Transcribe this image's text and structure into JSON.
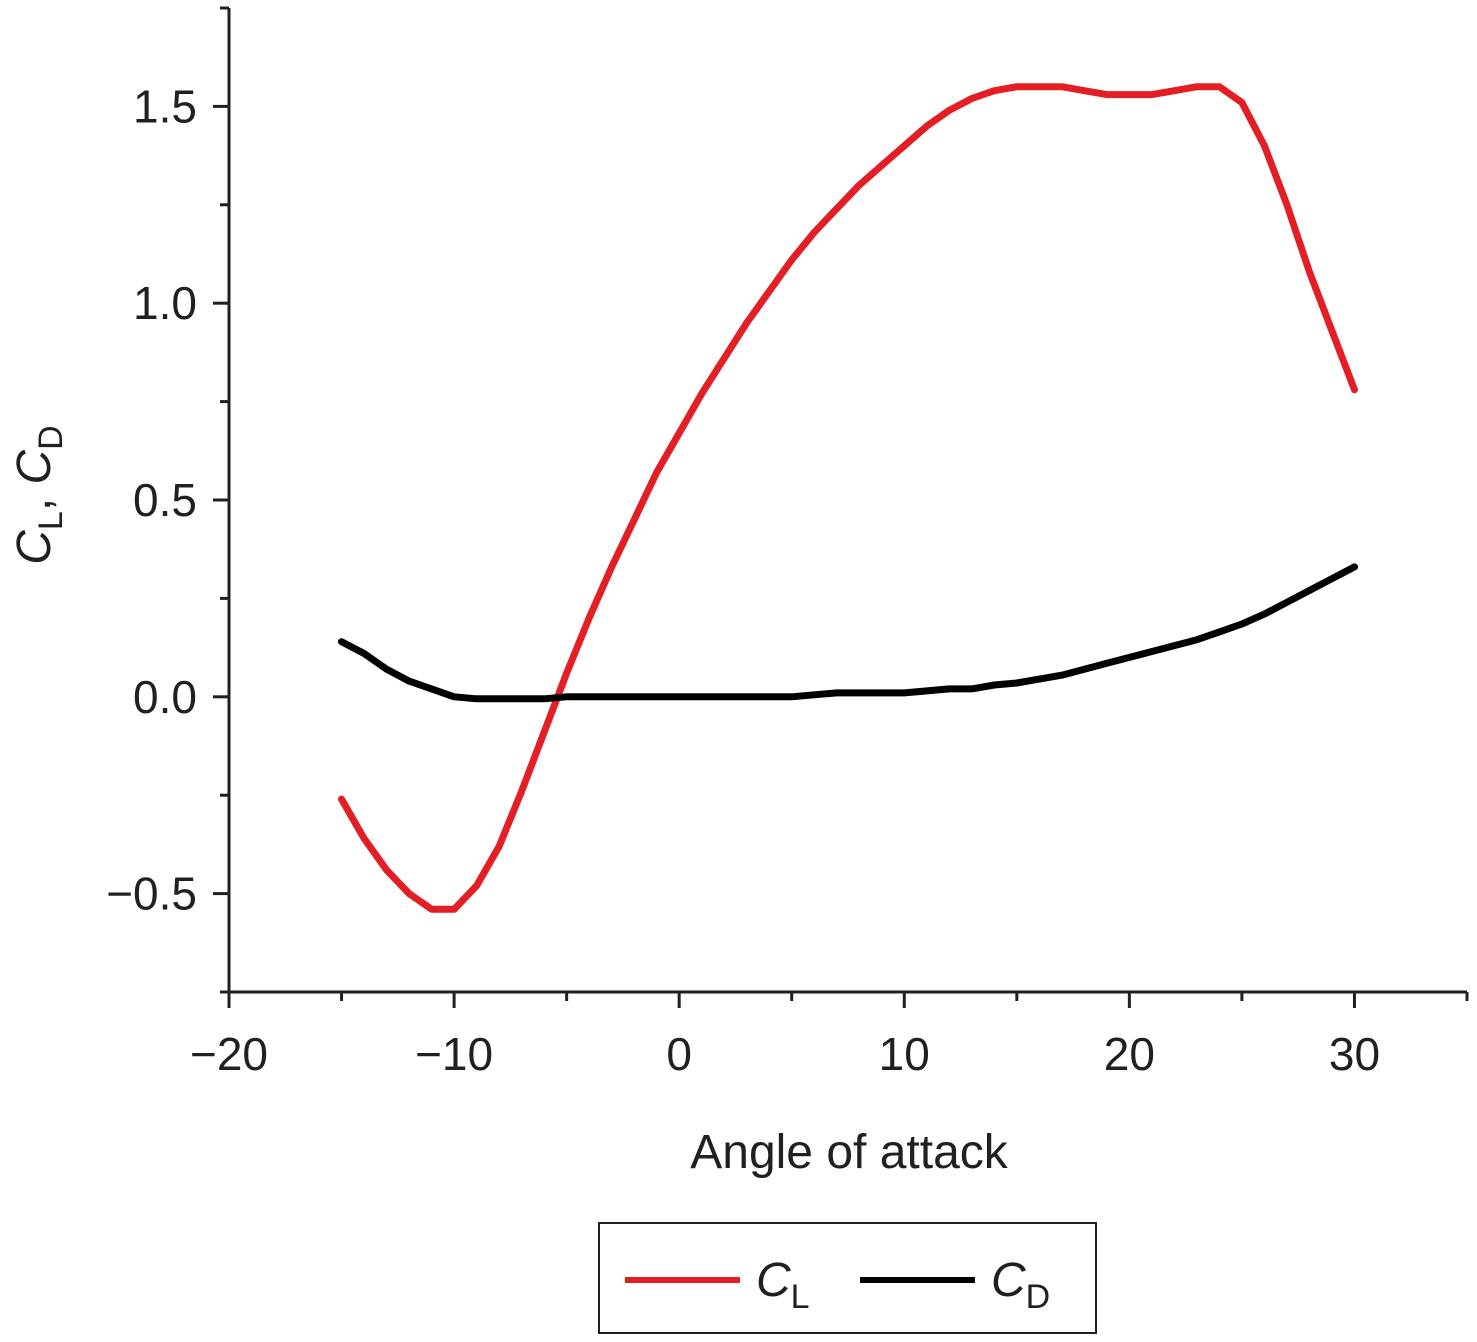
{
  "chart_data": {
    "type": "line",
    "title": "",
    "xlabel": "Angle of attack",
    "ylabel": {
      "symbol1": "C",
      "sub1": "L",
      "sep": ", ",
      "symbol2": "C",
      "sub2": "D"
    },
    "xlim": [
      -20,
      35
    ],
    "ylim": [
      -0.75,
      1.75
    ],
    "xticks": [
      -20,
      -10,
      0,
      10,
      20,
      30
    ],
    "xtick_labels": [
      "−20",
      "−10",
      "0",
      "10",
      "20",
      "30"
    ],
    "yticks": [
      -0.5,
      0.0,
      0.5,
      1.0,
      1.5
    ],
    "ytick_labels": [
      "−0.5",
      "0.0",
      "0.5",
      "1.0",
      "1.5"
    ],
    "grid": false,
    "legend": "bottom-center",
    "series": [
      {
        "symbol": "C",
        "subscript": "L",
        "color": "#e31e24",
        "x": [
          -15,
          -14,
          -13,
          -12,
          -11,
          -10,
          -9,
          -8,
          -7,
          -6,
          -5,
          -4,
          -3,
          -2,
          -1,
          0,
          1,
          2,
          3,
          4,
          5,
          6,
          7,
          8,
          9,
          10,
          11,
          12,
          13,
          14,
          15,
          16,
          17,
          18,
          19,
          20,
          21,
          22,
          23,
          24,
          25,
          26,
          27,
          28,
          29,
          30
        ],
        "y": [
          -0.26,
          -0.36,
          -0.44,
          -0.5,
          -0.54,
          -0.54,
          -0.48,
          -0.38,
          -0.24,
          -0.09,
          0.06,
          0.2,
          0.33,
          0.45,
          0.57,
          0.67,
          0.77,
          0.86,
          0.95,
          1.03,
          1.11,
          1.18,
          1.24,
          1.3,
          1.35,
          1.4,
          1.45,
          1.49,
          1.52,
          1.54,
          1.55,
          1.55,
          1.55,
          1.54,
          1.53,
          1.53,
          1.53,
          1.54,
          1.55,
          1.55,
          1.51,
          1.4,
          1.25,
          1.08,
          0.93,
          0.78
        ]
      },
      {
        "symbol": "C",
        "subscript": "D",
        "color": "#000000",
        "x": [
          -15,
          -14,
          -13,
          -12,
          -11,
          -10,
          -9,
          -8,
          -7,
          -6,
          -5,
          -4,
          -3,
          -2,
          -1,
          0,
          1,
          2,
          3,
          4,
          5,
          6,
          7,
          8,
          9,
          10,
          11,
          12,
          13,
          14,
          15,
          16,
          17,
          18,
          19,
          20,
          21,
          22,
          23,
          24,
          25,
          26,
          27,
          28,
          29,
          30
        ],
        "y": [
          0.14,
          0.11,
          0.07,
          0.04,
          0.02,
          0.0,
          -0.005,
          -0.005,
          -0.005,
          -0.005,
          0.0,
          0.0,
          0.0,
          0.0,
          0.0,
          0.0,
          0.0,
          0.0,
          0.0,
          0.0,
          0.0,
          0.005,
          0.01,
          0.01,
          0.01,
          0.01,
          0.015,
          0.02,
          0.02,
          0.03,
          0.035,
          0.045,
          0.055,
          0.07,
          0.085,
          0.1,
          0.115,
          0.13,
          0.145,
          0.165,
          0.185,
          0.21,
          0.24,
          0.27,
          0.3,
          0.33
        ]
      }
    ]
  }
}
